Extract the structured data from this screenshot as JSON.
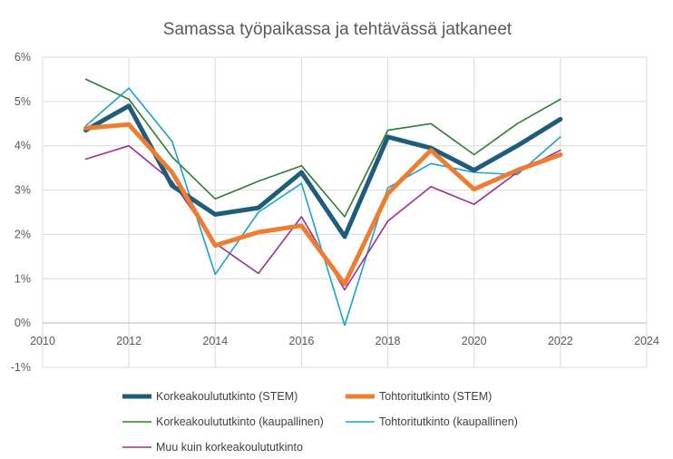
{
  "chart_data": {
    "type": "line",
    "title": "Samassa työpaikassa ja tehtävässä jatkaneet",
    "xlabel": "",
    "ylabel": "",
    "xlim": [
      2010,
      2024
    ],
    "ylim": [
      -0.01,
      0.06
    ],
    "x_ticks": [
      2010,
      2012,
      2014,
      2016,
      2018,
      2020,
      2022,
      2024
    ],
    "x_tick_labels": [
      "2010",
      "2012",
      "2014",
      "2016",
      "2018",
      "2020",
      "2022",
      "2024"
    ],
    "y_ticks": [
      -0.01,
      0,
      0.01,
      0.02,
      0.03,
      0.04,
      0.05,
      0.06
    ],
    "y_tick_labels": [
      "-1%",
      "0%",
      "1%",
      "2%",
      "3%",
      "4%",
      "5%",
      "6%"
    ],
    "grid": true,
    "legend_position": "bottom",
    "x": [
      2011,
      2012,
      2013,
      2014,
      2015,
      2016,
      2017,
      2018,
      2019,
      2020,
      2021,
      2022
    ],
    "series": [
      {
        "name": "Korkeakoulututkinto (STEM)",
        "color": "#1f5c7a",
        "width": "thick",
        "values": [
          0.0435,
          0.049,
          0.031,
          0.0245,
          0.026,
          0.034,
          0.0195,
          0.042,
          0.0395,
          0.0345,
          0.04,
          0.046
        ]
      },
      {
        "name": "Tohtoritutkinto (STEM)",
        "color": "#ed7d31",
        "width": "thick",
        "values": [
          0.044,
          0.0448,
          0.034,
          0.0175,
          0.0205,
          0.022,
          0.0088,
          0.0292,
          0.039,
          0.0302,
          0.0345,
          0.038
        ]
      },
      {
        "name": "Korkeakoulututkinto (kaupallinen)",
        "color": "#2e7d32",
        "width": "thin",
        "values": [
          0.055,
          0.0505,
          0.0375,
          0.028,
          0.032,
          0.0355,
          0.024,
          0.0435,
          0.045,
          0.038,
          0.045,
          0.0505
        ]
      },
      {
        "name": "Tohtoritutkinto (kaupallinen)",
        "color": "#1aa1d1",
        "width": "thin",
        "values": [
          0.0445,
          0.053,
          0.041,
          0.011,
          0.025,
          0.0315,
          -0.0005,
          0.0305,
          0.036,
          0.034,
          0.0335,
          0.042
        ]
      },
      {
        "name": "Muu kuin korkeakoulututkinto",
        "color": "#9b2d9b",
        "width": "thin",
        "values": [
          0.037,
          0.04,
          0.032,
          0.018,
          0.0112,
          0.024,
          0.0075,
          0.023,
          0.0308,
          0.0268,
          0.034,
          0.039
        ]
      }
    ]
  }
}
